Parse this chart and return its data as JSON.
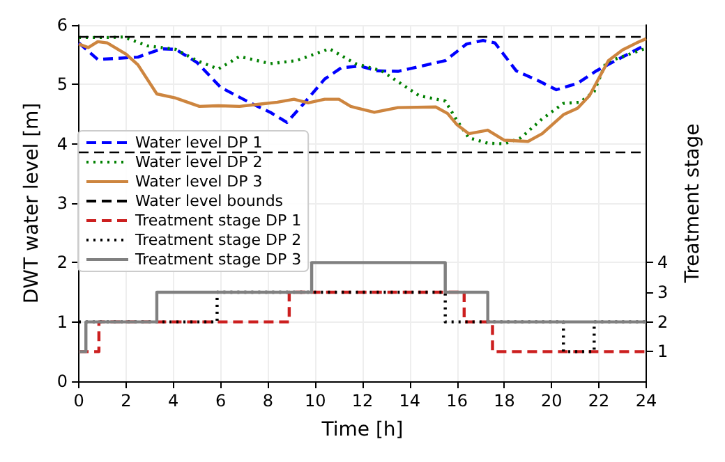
{
  "chart_data": {
    "type": "line",
    "xlabel": "Time [h]",
    "ylabel": "DWT water level [m]",
    "y2label": "Treatment stage",
    "xlim": [
      0,
      24
    ],
    "xticks": [
      0,
      2,
      4,
      6,
      8,
      10,
      12,
      14,
      16,
      18,
      20,
      22,
      24
    ],
    "ylim": [
      0,
      6
    ],
    "yticks": [
      0,
      1,
      2,
      3,
      4,
      5,
      6
    ],
    "y2lim": [
      0,
      12
    ],
    "y2ticks": [
      1,
      2,
      3,
      4
    ],
    "grid": true,
    "legend": "left",
    "marker": "none",
    "ref_lines": [
      {
        "axis": "y",
        "value": 5.8,
        "label": "Water level bounds",
        "color": "#000000",
        "line_style": "dashed"
      },
      {
        "axis": "y",
        "value": 3.85,
        "color": "#000000",
        "line_style": "dashed"
      }
    ],
    "series": [
      {
        "name": "Water level DP 1",
        "color": "#0000ff",
        "line_style": "dashed",
        "x": [
          0,
          0.8,
          2.5,
          3.5,
          4.1,
          5.0,
          6.0,
          7.2,
          8.1,
          8.8,
          9.5,
          10.4,
          11.1,
          11.9,
          12.6,
          13.5,
          15.5,
          16.4,
          17.1,
          17.6,
          18.5,
          19.5,
          20.2,
          21.1,
          21.9,
          22.7,
          24
        ],
        "values": [
          5.7,
          5.42,
          5.46,
          5.6,
          5.59,
          5.37,
          4.95,
          4.7,
          4.53,
          4.36,
          4.67,
          5.09,
          5.28,
          5.31,
          5.23,
          5.22,
          5.4,
          5.68,
          5.74,
          5.7,
          5.23,
          5.05,
          4.91,
          5.02,
          5.23,
          5.4,
          5.67
        ]
      },
      {
        "name": "Water level DP 2",
        "color": "#008000",
        "line_style": "dotted",
        "x": [
          0,
          1.4,
          1.9,
          2.9,
          4.1,
          5.0,
          5.9,
          6.8,
          8.1,
          9.2,
          10.6,
          11.7,
          12.8,
          14.4,
          15.5,
          16.0,
          16.5,
          17.3,
          18.0,
          18.7,
          19.6,
          20.5,
          21.2,
          21.8,
          22.3,
          24
        ],
        "values": [
          5.79,
          5.79,
          5.8,
          5.65,
          5.59,
          5.4,
          5.26,
          5.47,
          5.35,
          5.4,
          5.6,
          5.35,
          5.23,
          4.81,
          4.72,
          4.39,
          4.1,
          4.01,
          4.0,
          4.1,
          4.42,
          4.68,
          4.7,
          4.88,
          5.37,
          5.61
        ]
      },
      {
        "name": "Water level DP 3",
        "color": "#cd853f",
        "line_style": "solid",
        "x": [
          0,
          0.4,
          0.8,
          1.2,
          2.0,
          2.5,
          3.3,
          4.1,
          5.1,
          5.9,
          6.8,
          7.7,
          8.4,
          9.1,
          9.7,
          10.4,
          11.0,
          11.5,
          12.5,
          13.5,
          15.1,
          15.6,
          16.0,
          16.5,
          17.3,
          18.0,
          19.0,
          19.6,
          20.5,
          21.1,
          21.6,
          22.4,
          23.0,
          23.6,
          24
        ],
        "values": [
          5.68,
          5.62,
          5.72,
          5.7,
          5.51,
          5.33,
          4.84,
          4.77,
          4.63,
          4.64,
          4.63,
          4.67,
          4.7,
          4.75,
          4.69,
          4.75,
          4.75,
          4.63,
          4.53,
          4.61,
          4.62,
          4.51,
          4.32,
          4.17,
          4.23,
          4.06,
          4.04,
          4.17,
          4.49,
          4.6,
          4.81,
          5.4,
          5.58,
          5.7,
          5.77
        ]
      },
      {
        "name": "Treatment stage DP 1",
        "type": "step",
        "axis": "y2",
        "color": "#cc1f1f",
        "line_style": "dashed",
        "x": [
          0,
          0.85,
          8.9,
          16.3,
          17.5,
          24
        ],
        "values": [
          1,
          2,
          3,
          2,
          1,
          1
        ]
      },
      {
        "name": "Treatment stage DP 2",
        "type": "step",
        "axis": "y2",
        "color": "#000000",
        "line_style": "dotted",
        "x": [
          0,
          5.85,
          15.5,
          20.5,
          21.8,
          24
        ],
        "values": [
          2,
          3,
          2,
          1,
          2,
          2
        ]
      },
      {
        "name": "Treatment stage DP 3",
        "type": "step",
        "axis": "y2",
        "color": "#808080",
        "line_style": "solid",
        "x": [
          0,
          0.3,
          3.3,
          9.85,
          15.5,
          17.3,
          24
        ],
        "values": [
          1,
          2,
          3,
          4,
          3,
          2,
          2
        ]
      }
    ]
  }
}
